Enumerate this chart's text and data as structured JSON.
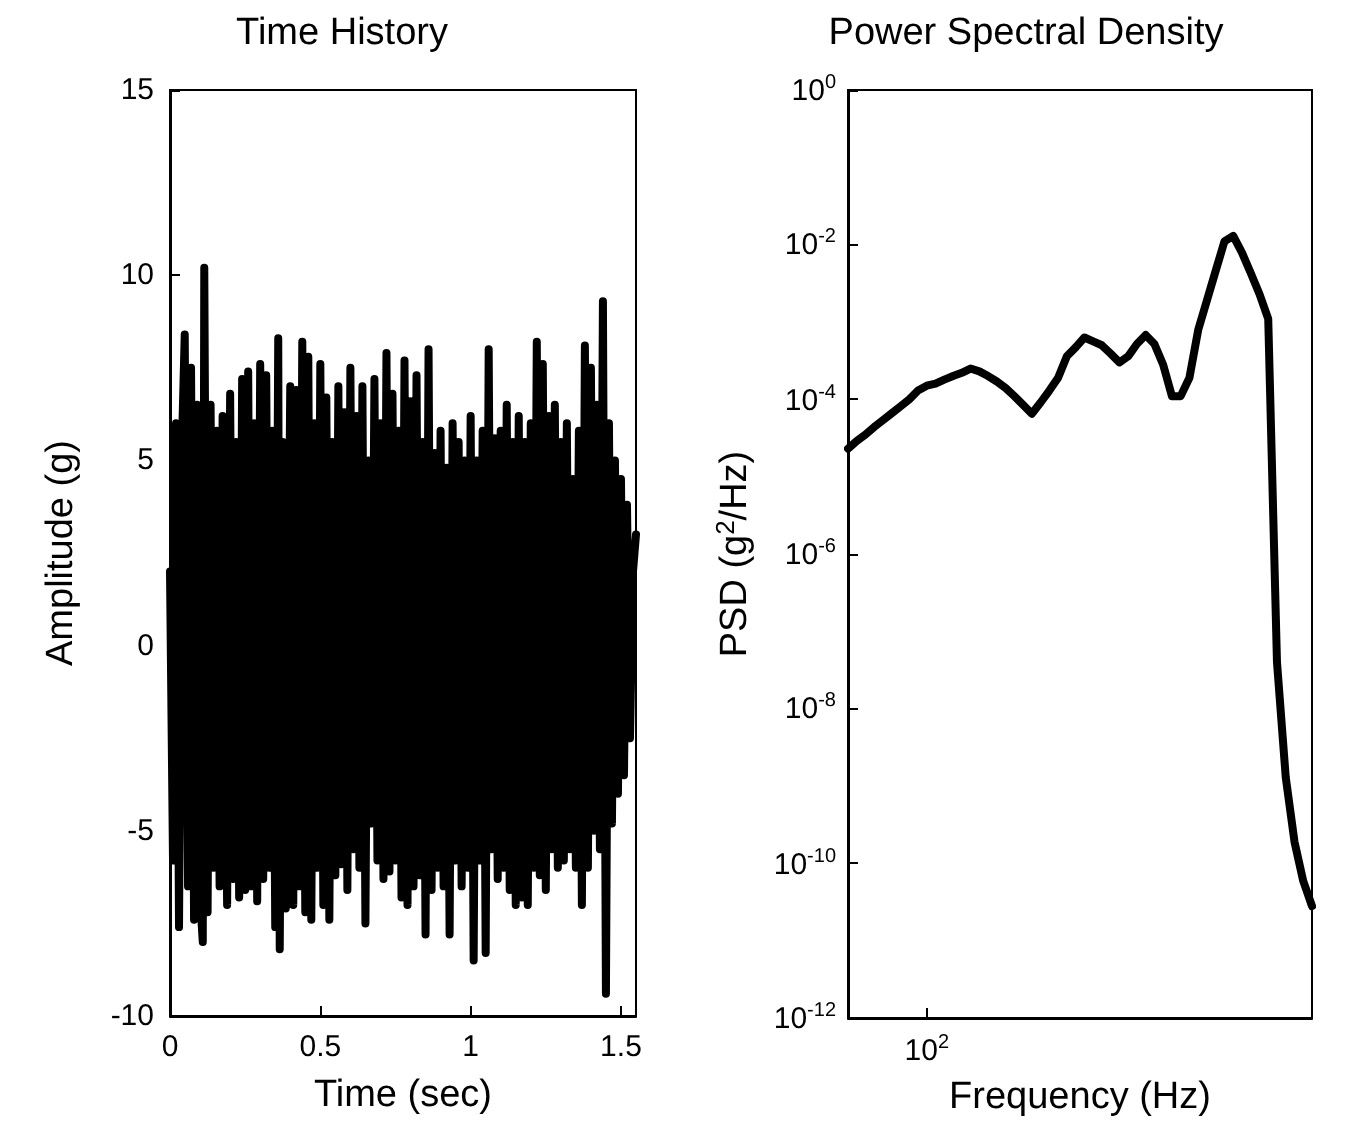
{
  "chart_data": [
    {
      "type": "line",
      "title": "Time History",
      "xlabel": "Time (sec)",
      "ylabel": "Amplitude (g)",
      "color": "#000000",
      "line_style": "solid",
      "marker": "none",
      "grid": false,
      "xlim": [
        0,
        1.55
      ],
      "xticks": [
        0,
        0.5,
        1,
        1.5
      ],
      "ylim": [
        -10,
        15
      ],
      "yticks": [
        -10,
        -5,
        0,
        5,
        10,
        15
      ],
      "x": [
        0,
        0.01,
        0.02,
        0.03,
        0.04,
        0.049,
        0.06,
        0.07,
        0.08,
        0.09,
        0.1,
        0.109,
        0.114,
        0.125,
        0.135,
        0.145,
        0.155,
        0.165,
        0.175,
        0.19,
        0.2,
        0.21,
        0.22,
        0.23,
        0.24,
        0.25,
        0.26,
        0.27,
        0.28,
        0.29,
        0.3,
        0.31,
        0.32,
        0.33,
        0.34,
        0.35,
        0.36,
        0.365,
        0.375,
        0.385,
        0.4,
        0.41,
        0.42,
        0.43,
        0.44,
        0.45,
        0.46,
        0.47,
        0.48,
        0.49,
        0.5,
        0.51,
        0.52,
        0.53,
        0.54,
        0.55,
        0.56,
        0.57,
        0.58,
        0.59,
        0.6,
        0.61,
        0.62,
        0.63,
        0.64,
        0.65,
        0.66,
        0.67,
        0.68,
        0.69,
        0.7,
        0.71,
        0.72,
        0.73,
        0.74,
        0.75,
        0.76,
        0.77,
        0.78,
        0.79,
        0.8,
        0.81,
        0.82,
        0.83,
        0.84,
        0.85,
        0.86,
        0.87,
        0.88,
        0.89,
        0.9,
        0.91,
        0.92,
        0.93,
        0.94,
        0.95,
        0.96,
        0.97,
        0.98,
        0.99,
        1.0,
        1.01,
        1.02,
        1.03,
        1.04,
        1.05,
        1.06,
        1.07,
        1.08,
        1.09,
        1.1,
        1.11,
        1.12,
        1.13,
        1.14,
        1.15,
        1.16,
        1.17,
        1.18,
        1.19,
        1.2,
        1.21,
        1.22,
        1.23,
        1.24,
        1.25,
        1.26,
        1.27,
        1.28,
        1.29,
        1.3,
        1.31,
        1.32,
        1.33,
        1.34,
        1.35,
        1.36,
        1.37,
        1.38,
        1.39,
        1.4,
        1.41,
        1.42,
        1.43,
        1.44,
        1.45,
        1.46,
        1.47,
        1.48,
        1.49,
        1.5,
        1.51,
        1.52,
        1.53,
        1.54,
        1.55
      ],
      "values": [
        2,
        -5.8,
        6.0,
        -7.6,
        5.5,
        8.4,
        -6.5,
        7.5,
        -7.4,
        6.5,
        -6.8,
        -8.0,
        10.2,
        -7.2,
        6.5,
        -6.0,
        5.8,
        -6.5,
        6.2,
        -7.0,
        6.8,
        -6.3,
        5.5,
        -6.8,
        7.2,
        -6.6,
        7.4,
        -6.5,
        6.0,
        -6.9,
        7.6,
        -6.3,
        7.3,
        -6.0,
        5.8,
        -7.6,
        8.3,
        -8.2,
        5.5,
        -7.1,
        7.0,
        -7.0,
        6.9,
        -6.5,
        8.2,
        -7.2,
        7.8,
        -7.4,
        6.0,
        -6.0,
        7.6,
        -7.0,
        6.7,
        -7.4,
        5.5,
        -6.2,
        7.0,
        -5.9,
        6.3,
        -6.6,
        7.5,
        -5.5,
        6.2,
        -6.0,
        7.0,
        -7.5,
        5.0,
        -4.8,
        7.2,
        -5.8,
        6.0,
        -6.3,
        7.9,
        -6.1,
        6.8,
        -5.8,
        5.8,
        -6.8,
        7.7,
        -7.0,
        6.6,
        -6.5,
        7.3,
        -6.2,
        5.5,
        -7.8,
        8.0,
        -6.6,
        5.2,
        -6.0,
        5.8,
        -6.5,
        4.8,
        -7.8,
        6.0,
        -5.8,
        5.5,
        -6.5,
        5.0,
        -6.0,
        6.2,
        -8.5,
        5.0,
        -5.8,
        5.8,
        -8.3,
        8.0,
        -5.5,
        5.6,
        -6.3,
        5.8,
        -6.0,
        6.5,
        -6.6,
        5.5,
        -7.0,
        6.2,
        -6.8,
        5.5,
        -7.0,
        6.0,
        -6.0,
        8.2,
        -6.2,
        7.6,
        -6.6,
        6.2,
        -5.5,
        6.5,
        -6.0,
        5.5,
        -5.8,
        6.0,
        -5.5,
        4.5,
        -6.0,
        5.8,
        -7.0,
        8.1,
        -6.0,
        7.5,
        -5.0,
        6.5,
        -5.5,
        9.3,
        -9.4,
        6.0,
        -4.8,
        5.0,
        -4.0,
        4.5,
        -3.5,
        3.8,
        -2.5,
        2.0,
        3.0
      ]
    },
    {
      "type": "line",
      "title": "Power Spectral Density",
      "xlabel": "Frequency (Hz)",
      "ylabel": "PSD (g$^{2}$/Hz)",
      "color": "#000000",
      "line_style": "solid",
      "marker": "none",
      "grid": false,
      "log": "y",
      "categories": [
        null,
        null,
        null,
        null,
        null,
        null,
        null,
        null,
        null,
        "10$^{2}$",
        null,
        null,
        null,
        null,
        null,
        null,
        null,
        null,
        null,
        null,
        null,
        null,
        null,
        null,
        null,
        null,
        null,
        null,
        null,
        null,
        null,
        null,
        null,
        null,
        null,
        null,
        null,
        null,
        null,
        null,
        null,
        null,
        null,
        null,
        null,
        null,
        null,
        null,
        null,
        null,
        null,
        null,
        null,
        null
      ],
      "ylim": [
        1e-12,
        1
      ],
      "yticks": [
        {
          "value": 1e-12,
          "label": "10$^{-12}$"
        },
        {
          "value": 1e-10,
          "label": "10$^{-10}$"
        },
        {
          "value": 1e-08,
          "label": "10$^{-8}$"
        },
        {
          "value": 1e-06,
          "label": "10$^{-6}$"
        },
        {
          "value": 0.0001,
          "label": "10$^{-4}$"
        },
        {
          "value": 0.01,
          "label": "10$^{-2}$"
        },
        {
          "value": 1,
          "label": "10$^{0}$"
        }
      ],
      "values": [
        2.3e-05,
        2.9e-05,
        3.5e-05,
        4.4e-05,
        5.4e-05,
        6.6e-05,
        8.1e-05,
        0.0001,
        0.00013,
        0.00015,
        0.00016,
        0.00018,
        0.0002,
        0.00022,
        0.00025,
        0.00023,
        0.0002,
        0.00017,
        0.00014,
        0.00011,
        8.5e-05,
        6.5e-05,
        9.1e-05,
        0.00013,
        0.00019,
        0.00036,
        0.00047,
        0.00063,
        0.00056,
        0.0005,
        0.00039,
        0.0003,
        0.00036,
        0.00052,
        0.00068,
        0.00052,
        0.00028,
        0.00011,
        0.00011,
        0.00019,
        0.00079,
        0.0019,
        0.0046,
        0.011,
        0.013,
        0.0079,
        0.0043,
        0.0023,
        0.0011,
        4e-08,
        1.3e-09,
        1.9e-10,
        5.9e-11,
        2.8e-11
      ]
    }
  ]
}
